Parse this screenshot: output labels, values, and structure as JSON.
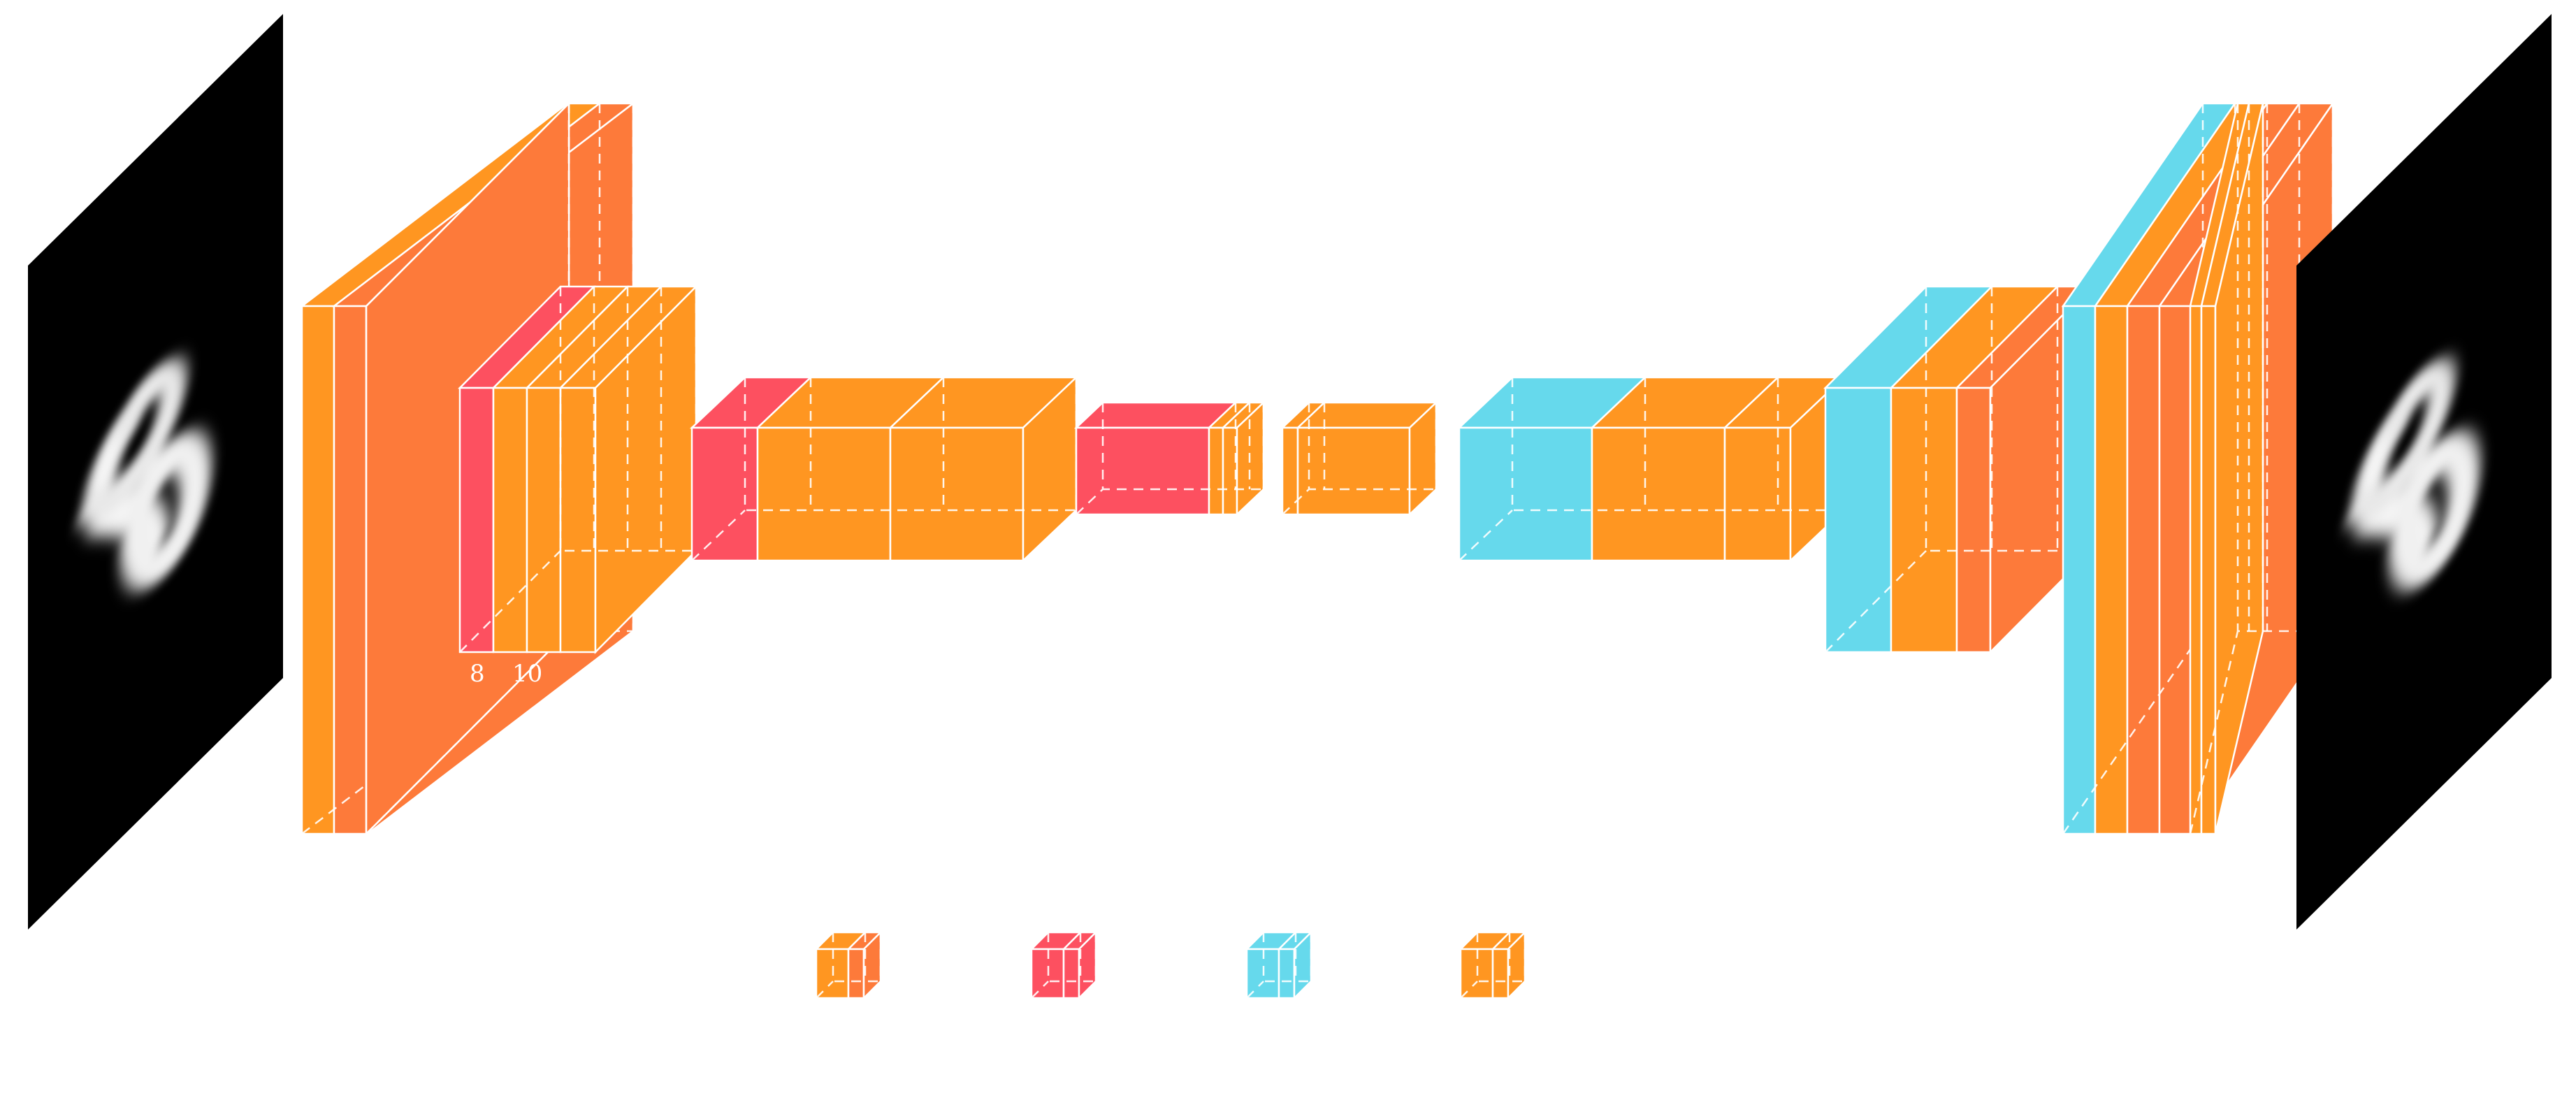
{
  "colors": {
    "conv": "#ff9621",
    "relu": "#fd7a3a",
    "pool": "#fd5060",
    "unpool": "#66d9ec",
    "background": "#ffffff",
    "image_bg": "#000000",
    "edge": "#ffffff"
  },
  "labels": {
    "block1_width_a": "8",
    "block1_width_b": "10"
  },
  "input_image": {
    "icon": "digit-8-image"
  },
  "output_image": {
    "icon": "digit-8-image"
  },
  "legend": [
    {
      "icon": "conv-relu-cube-icon"
    },
    {
      "icon": "pool-cube-icon"
    },
    {
      "icon": "unpool-cube-icon"
    },
    {
      "icon": "conv-cube-icon"
    }
  ]
}
